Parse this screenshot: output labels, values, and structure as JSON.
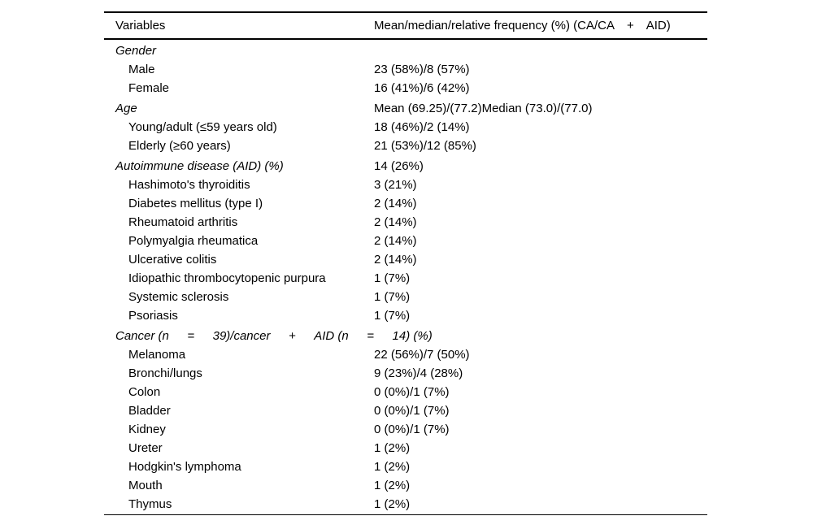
{
  "table": {
    "columns": [
      {
        "label": "Variables"
      },
      {
        "label": "Mean/median/relative frequency (%) (CA/CA  +  AID)"
      }
    ],
    "rows": [
      {
        "label": "Gender",
        "value": "",
        "style": "category"
      },
      {
        "label": "Male",
        "value": "23 (58%)/8 (57%)",
        "style": "item"
      },
      {
        "label": "Female",
        "value": "16 (41%)/6 (42%)",
        "style": "item"
      },
      {
        "label": "Age",
        "value": "Mean (69.25)/(77.2)Median (73.0)/(77.0)",
        "style": "category"
      },
      {
        "label": "Young/adult (≤59 years old)",
        "value": "18 (46%)/2 (14%)",
        "style": "item"
      },
      {
        "label": "Elderly (≥60 years)",
        "value": "21 (53%)/12 (85%)",
        "style": "item"
      },
      {
        "label": "Autoimmune disease (AID) (%)",
        "value": "14 (26%)",
        "style": "category"
      },
      {
        "label": "Hashimoto's thyroiditis",
        "value": "3 (21%)",
        "style": "item"
      },
      {
        "label": "Diabetes mellitus (type I)",
        "value": "2 (14%)",
        "style": "item"
      },
      {
        "label": "Rheumatoid arthritis",
        "value": "2 (14%)",
        "style": "item"
      },
      {
        "label": "Polymyalgia rheumatica",
        "value": "2 (14%)",
        "style": "item"
      },
      {
        "label": "Ulcerative colitis",
        "value": "2 (14%)",
        "style": "item"
      },
      {
        "label": "Idiopathic thrombocytopenic purpura",
        "value": "1 (7%)",
        "style": "item"
      },
      {
        "label": "Systemic sclerosis",
        "value": "1 (7%)",
        "style": "item"
      },
      {
        "label": "Psoriasis",
        "value": "1 (7%)",
        "style": "item"
      },
      {
        "label": "Cancer (n   =   39)/cancer   +   AID (n   =   14) (%)",
        "value": "",
        "style": "category"
      },
      {
        "label": "Melanoma",
        "value": "22 (56%)/7 (50%)",
        "style": "item"
      },
      {
        "label": "Bronchi/lungs",
        "value": "9 (23%)/4 (28%)",
        "style": "item"
      },
      {
        "label": "Colon",
        "value": "0 (0%)/1 (7%)",
        "style": "item"
      },
      {
        "label": "Bladder",
        "value": "0 (0%)/1 (7%)",
        "style": "item"
      },
      {
        "label": "Kidney",
        "value": "0 (0%)/1 (7%)",
        "style": "item"
      },
      {
        "label": "Ureter",
        "value": "1 (2%)",
        "style": "item"
      },
      {
        "label": "Hodgkin's lymphoma",
        "value": "1 (2%)",
        "style": "item"
      },
      {
        "label": "Mouth",
        "value": "1 (2%)",
        "style": "item"
      },
      {
        "label": "Thymus",
        "value": "1 (2%)",
        "style": "item"
      }
    ]
  }
}
